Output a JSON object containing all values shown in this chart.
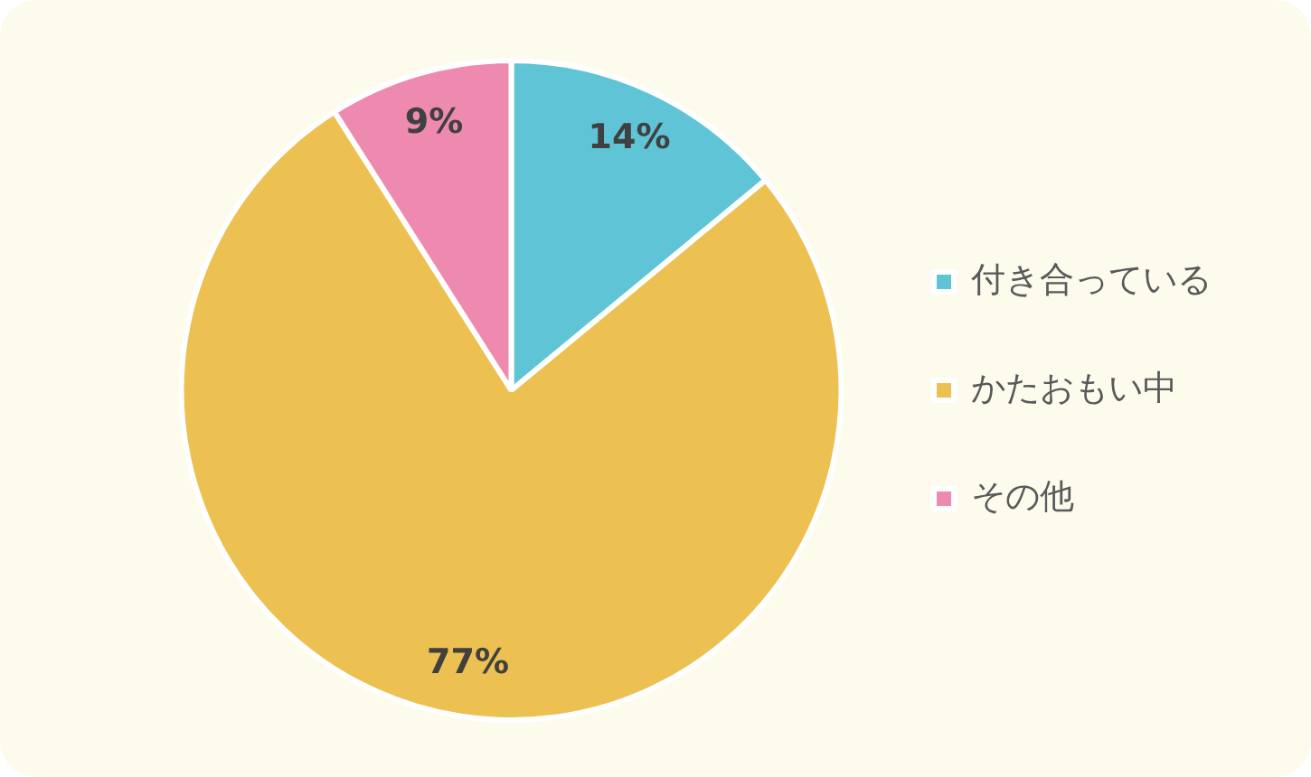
{
  "chart_data": {
    "type": "pie",
    "categories": [
      "付き合っている",
      "かたおもい中",
      "その他"
    ],
    "values": [
      14,
      77,
      9
    ],
    "colors": [
      "#5ec4d6",
      "#ecc051",
      "#ee8ab0"
    ],
    "value_labels": [
      "14%",
      "77%",
      "9%"
    ],
    "legend": "right"
  }
}
